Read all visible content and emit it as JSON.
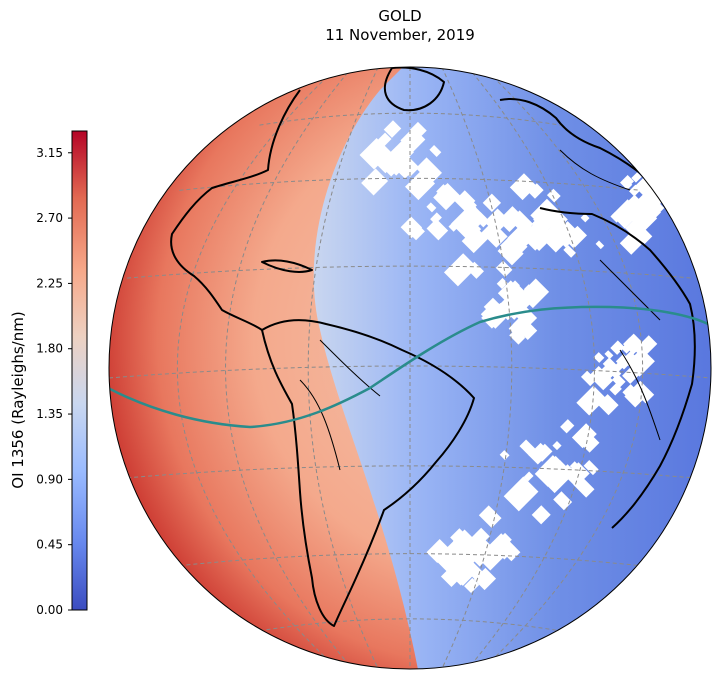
{
  "title": {
    "line1": "GOLD",
    "line2": "11 November, 2019"
  },
  "colorbar": {
    "label": "OI 1356 (Rayleighs/nm)",
    "ticks": [
      "0.00",
      "0.45",
      "0.90",
      "1.35",
      "1.80",
      "2.25",
      "2.70",
      "3.15"
    ],
    "min": 0.0,
    "max": 3.3,
    "colormap": [
      "#3b4cc0",
      "#6788ee",
      "#9abbff",
      "#c9d7f0",
      "#edd1c2",
      "#f7a889",
      "#e26952",
      "#b40426"
    ]
  },
  "map": {
    "projection": "orthographic",
    "gridlines": "dashed",
    "land_outline_color": "#000000",
    "magnetic_equator_color": "#2a8c8c",
    "no_data_color": "#ffffff"
  }
}
